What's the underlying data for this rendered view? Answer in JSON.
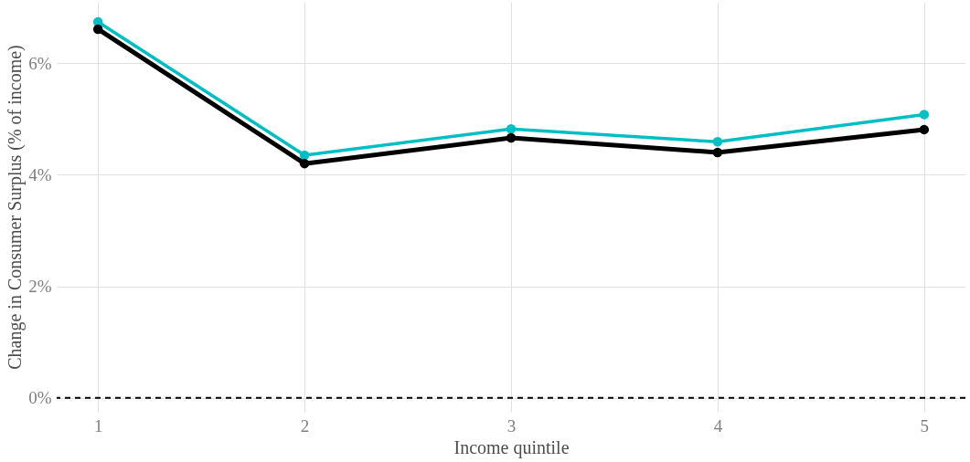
{
  "chart_data": {
    "type": "line",
    "xlabel": "Income quintile",
    "ylabel": "Change in Consumer Surplus (% of income)",
    "x": [
      1,
      2,
      3,
      4,
      5
    ],
    "series": [
      {
        "color": "#00bfc4",
        "values": [
          6.74,
          4.35,
          4.82,
          4.59,
          5.08
        ]
      },
      {
        "color": "#000000",
        "values": [
          6.61,
          4.2,
          4.66,
          4.4,
          4.81
        ]
      }
    ],
    "xlim": [
      0.8,
      5.2
    ],
    "xticks": [
      1,
      2,
      3,
      4,
      5
    ],
    "ylim": [
      -0.25,
      7.1
    ],
    "yticks": [
      {
        "value": 0,
        "label": "0%"
      },
      {
        "value": 2,
        "label": "2%"
      },
      {
        "value": 4,
        "label": "4%"
      },
      {
        "value": 6,
        "label": "6%"
      }
    ],
    "ref_lines": [
      {
        "axis": "y",
        "value": 0,
        "color": "#000000",
        "line_style": "dashed"
      }
    ],
    "grid": true,
    "marker": "circle",
    "line_style": "solid"
  }
}
